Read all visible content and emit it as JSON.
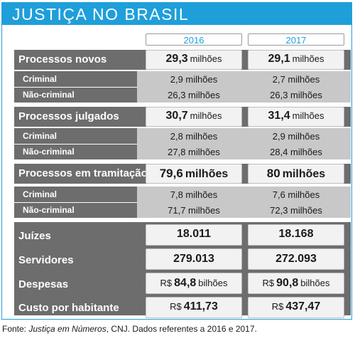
{
  "title": "JUSTIÇA NO BRASIL",
  "years": [
    "2016",
    "2017"
  ],
  "rows": {
    "novos": {
      "label": "Processos novos",
      "v2016": "29,3",
      "v2017": "29,1",
      "unit": "milhões"
    },
    "novos_criminal": {
      "label": "Criminal",
      "v2016": "2,9 milhões",
      "v2017": "2,7 milhões"
    },
    "novos_nao": {
      "label": "Não-criminal",
      "v2016": "26,3 milhões",
      "v2017": "26,3 milhões"
    },
    "julgados": {
      "label": "Processos julgados",
      "v2016": "30,7",
      "v2017": "31,4",
      "unit": "milhões"
    },
    "julgados_criminal": {
      "label": "Criminal",
      "v2016": "2,8 milhões",
      "v2017": "2,9 milhões"
    },
    "julgados_nao": {
      "label": "Não-criminal",
      "v2016": "27,8 milhões",
      "v2017": "28,4 milhões"
    },
    "tramitacao": {
      "label": "Processos em tramitação",
      "v2016": "79,6",
      "v2016_unit": "milhões",
      "v2017": "80",
      "v2017_unit": "milhões"
    },
    "tram_criminal": {
      "label": "Criminal",
      "v2016": "7,8 milhões",
      "v2017": "7,6 milhões"
    },
    "tram_nao": {
      "label": "Não-criminal",
      "v2016": "71,7 milhões",
      "v2017": "72,3 milhões"
    },
    "juizes": {
      "label": "Juízes",
      "v2016": "18.011",
      "v2017": "18.168"
    },
    "servidores": {
      "label": "Servidores",
      "v2016": "279.013",
      "v2017": "272.093"
    },
    "despesas": {
      "label": "Despesas",
      "prefix": "R$",
      "v2016": "84,8",
      "v2017": "90,8",
      "unit": "bilhões"
    },
    "custo": {
      "label": "Custo por habitante",
      "prefix": "R$",
      "v2016": "411,73",
      "v2017": "437,47"
    }
  },
  "source": {
    "prefix": "Fonte: ",
    "italic": "Justiça em Números",
    "suffix": ", CNJ. Dados referentes a 2016 e 2017."
  },
  "colors": {
    "accent": "#1f9fda",
    "dark": "#6d6d6e",
    "light": "#c8c8c9"
  }
}
